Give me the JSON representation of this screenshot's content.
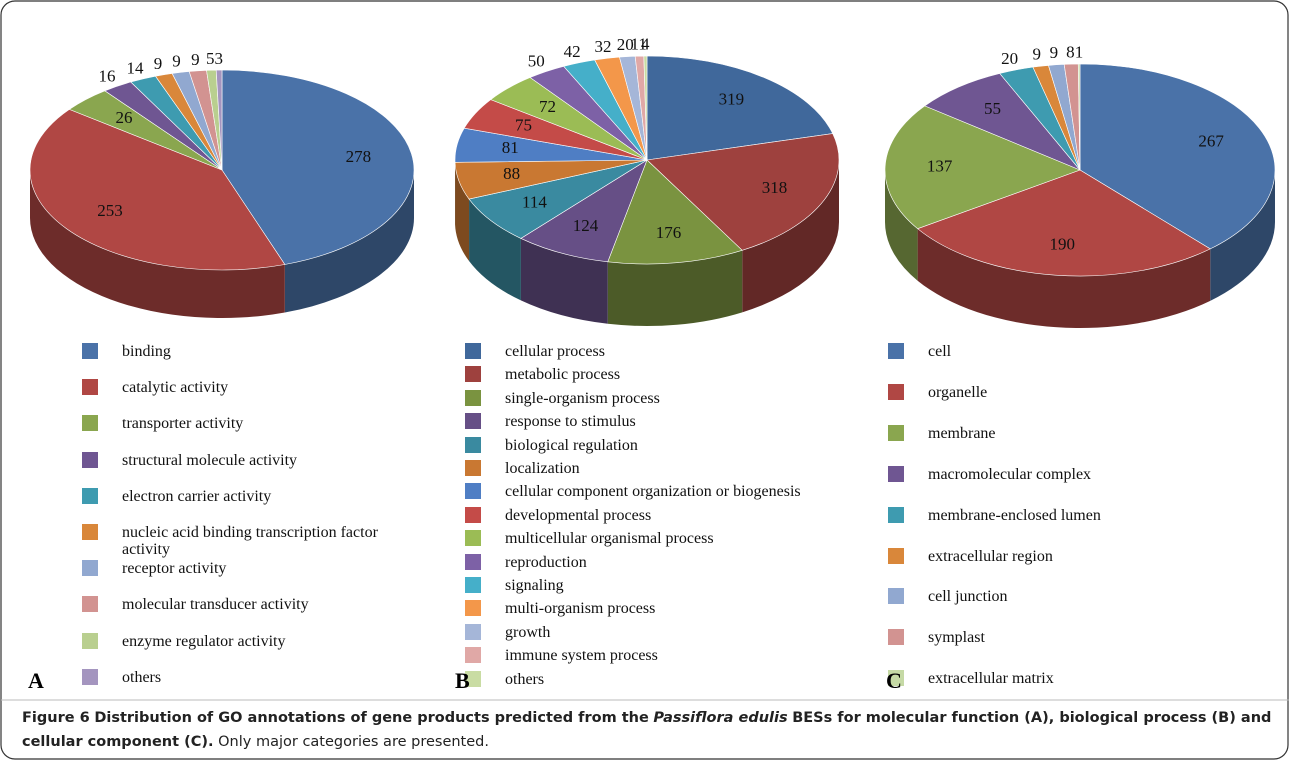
{
  "chart_data": [
    {
      "type": "pie3d",
      "panel": "A",
      "categories": [
        "binding",
        "catalytic activity",
        "transporter activity",
        "structural molecule activity",
        "electron carrier activity",
        "nucleic acid binding transcription factor activity",
        "receptor activity",
        "molecular transducer activity",
        "enzyme regulator activity",
        "others"
      ],
      "values": [
        278,
        253,
        26,
        16,
        14,
        9,
        9,
        9,
        5,
        3
      ],
      "colors": [
        "#4a72a8",
        "#b04744",
        "#8aa64f",
        "#6f5692",
        "#3e9bb0",
        "#d9873a",
        "#91a8d0",
        "#d29391",
        "#b9cf8f",
        "#a495bf"
      ]
    },
    {
      "type": "pie3d",
      "panel": "B",
      "categories": [
        "cellular process",
        "metabolic process",
        "single-organism process",
        "response to stimulus",
        "biological regulation",
        "localization",
        "cellular component organization or biogenesis",
        "developmental process",
        "multicellular organismal process",
        "reproduction",
        "signaling",
        "multi-organism process",
        "growth",
        "immune system process",
        "others"
      ],
      "values": [
        319,
        318,
        176,
        124,
        114,
        88,
        81,
        75,
        72,
        50,
        42,
        32,
        20,
        11,
        4
      ],
      "colors": [
        "#40689b",
        "#9e413e",
        "#7a9340",
        "#664f86",
        "#3a8aa0",
        "#c97832",
        "#4f7ec4",
        "#c44b48",
        "#9bbc55",
        "#7d61a6",
        "#45afc9",
        "#f3974a",
        "#a5b6d8",
        "#e0a8a6",
        "#c9dca3"
      ]
    },
    {
      "type": "pie3d",
      "panel": "C",
      "categories": [
        "cell",
        "organelle",
        "membrane",
        "macromolecular complex",
        "membrane-enclosed lumen",
        "extracellular region",
        "cell junction",
        "symplast",
        "extracellular matrix"
      ],
      "values": [
        267,
        190,
        137,
        55,
        20,
        9,
        9,
        8,
        1
      ],
      "colors": [
        "#4a72a8",
        "#b04744",
        "#8aa64f",
        "#6f5692",
        "#3e9bb0",
        "#d9873a",
        "#91a8d0",
        "#d29391",
        "#c5d9a5"
      ]
    }
  ],
  "caption": {
    "figure": "Figure 6",
    "bold_before": "Distribution of GO annotations of gene products predicted from the",
    "italic": "Passiflora edulis",
    "bold_after": "BESs for molecular function (A), biological process (B) and cellular component (C).",
    "rest": "Only major categories are presented."
  }
}
